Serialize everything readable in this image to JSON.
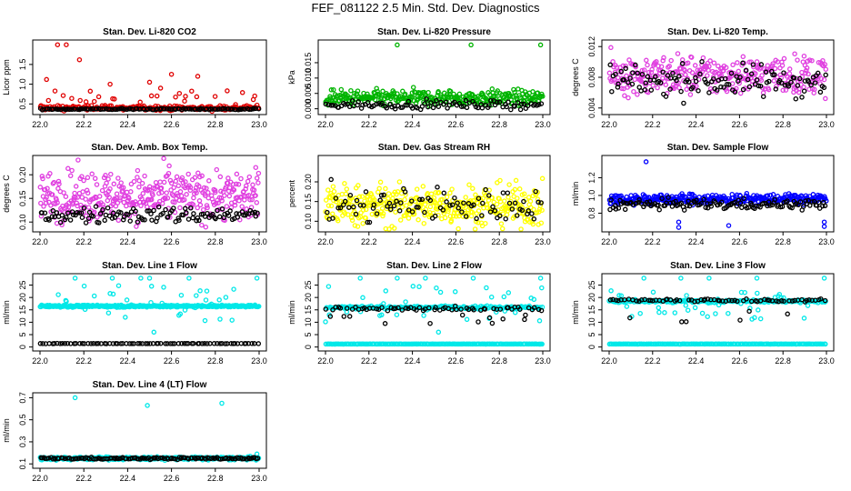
{
  "page": {
    "title": "FEF_081122  2.5 Min. Std. Dev. Diagnostics"
  },
  "colors": {
    "black": "#000000",
    "red": "#e00000",
    "green": "#00b400",
    "magenta": "#e040e0",
    "yellow": "#ffff00",
    "blue": "#0000ff",
    "cyan": "#00e8e8"
  },
  "chart_data": [
    {
      "id": "co2",
      "type": "scatter",
      "title": "Stan. Dev. Li-820 CO2",
      "ylabel": "Licor ppm",
      "xlim": [
        22.0,
        23.0
      ],
      "ylim": [
        0.3,
        2.05
      ],
      "xticks": [
        "22.0",
        "22.2",
        "22.4",
        "22.6",
        "22.8",
        "23.0"
      ],
      "yticks": [
        "0.5",
        "1.0",
        "1.5"
      ],
      "series": [
        {
          "name": "primary",
          "color": "red",
          "n": 240,
          "base": 0.4,
          "spread": 0.05,
          "outlier_rate": 0.1,
          "outlier_range": [
            0.5,
            0.85
          ],
          "extra": [
            [
              22.08,
              2.0
            ],
            [
              22.12,
              2.0
            ],
            [
              22.18,
              1.62
            ],
            [
              22.03,
              1.12
            ],
            [
              22.32,
              1.0
            ],
            [
              22.5,
              1.05
            ],
            [
              22.6,
              1.25
            ],
            [
              22.72,
              1.2
            ],
            [
              22.55,
              0.9
            ],
            [
              22.98,
              0.7
            ]
          ]
        },
        {
          "name": "secondary",
          "color": "black",
          "n": 120,
          "base": 0.37,
          "spread": 0.015,
          "outlier_rate": 0,
          "outlier_range": [
            0,
            0
          ],
          "extra": []
        }
      ]
    },
    {
      "id": "pressure",
      "type": "scatter",
      "title": "Stan. Dev. Li-820 Pressure",
      "ylabel": "kPa",
      "xlim": [
        22.0,
        23.0
      ],
      "ylim": [
        -0.001,
        0.0215
      ],
      "xticks": [
        "22.0",
        "22.2",
        "22.4",
        "22.6",
        "22.8",
        "23.0"
      ],
      "yticks": [
        "0.000",
        "0.005",
        "0.010",
        "0.015"
      ],
      "series": [
        {
          "name": "primary",
          "color": "green",
          "n": 320,
          "base": 0.0035,
          "spread": 0.0022,
          "outlier_rate": 0,
          "outlier_range": [
            0,
            0
          ],
          "extra": [
            [
              22.33,
              0.0208
            ],
            [
              22.67,
              0.0208
            ],
            [
              22.99,
              0.0208
            ]
          ]
        },
        {
          "name": "secondary",
          "color": "black",
          "n": 100,
          "base": 0.0013,
          "spread": 0.0011,
          "outlier_rate": 0,
          "outlier_range": [
            0,
            0
          ],
          "extra": []
        }
      ]
    },
    {
      "id": "temp",
      "type": "scatter",
      "title": "Stan. Dev. Li-820 Temp.",
      "ylabel": "degrees C",
      "xlim": [
        22.0,
        23.0
      ],
      "ylim": [
        0.0035,
        0.0125
      ],
      "xticks": [
        "22.0",
        "22.2",
        "22.4",
        "22.6",
        "22.8",
        "23.0"
      ],
      "yticks": [
        "0.004",
        "0.008",
        "0.012"
      ],
      "series": [
        {
          "name": "primary",
          "color": "magenta",
          "n": 320,
          "base": 0.0083,
          "spread": 0.0022,
          "outlier_rate": 0,
          "outlier_range": [
            0,
            0
          ],
          "extra": []
        },
        {
          "name": "secondary",
          "color": "black",
          "n": 120,
          "base": 0.0075,
          "spread": 0.0018,
          "outlier_rate": 0,
          "outlier_range": [
            0,
            0
          ],
          "extra": []
        }
      ]
    },
    {
      "id": "ambbox",
      "type": "scatter",
      "title": "Stan. Dev. Amb. Box Temp.",
      "ylabel": "degrees C",
      "xlim": [
        22.0,
        23.0
      ],
      "ylim": [
        0.085,
        0.235
      ],
      "xticks": [
        "22.0",
        "22.2",
        "22.4",
        "22.6",
        "22.8",
        "23.0"
      ],
      "yticks": [
        "0.10",
        "0.15",
        "0.20"
      ],
      "series": [
        {
          "name": "primary",
          "color": "magenta",
          "n": 380,
          "base": 0.155,
          "spread": 0.045,
          "outlier_rate": 0,
          "outlier_range": [
            0,
            0
          ],
          "extra": []
        },
        {
          "name": "secondary",
          "color": "black",
          "n": 120,
          "base": 0.115,
          "spread": 0.015,
          "outlier_rate": 0,
          "outlier_range": [
            0,
            0
          ],
          "extra": []
        }
      ]
    },
    {
      "id": "rh",
      "type": "scatter",
      "title": "Stan. Dev. Gas Stream RH",
      "ylabel": "percent",
      "xlim": [
        22.0,
        23.0
      ],
      "ylim": [
        0.08,
        0.26
      ],
      "xticks": [
        "22.0",
        "22.2",
        "22.4",
        "22.6",
        "22.8",
        "23.0"
      ],
      "yticks": [
        "0.10",
        "0.15",
        "0.20"
      ],
      "series": [
        {
          "name": "primary",
          "color": "yellow",
          "n": 380,
          "base": 0.14,
          "spread": 0.045,
          "outlier_rate": 0,
          "outlier_range": [
            0,
            0
          ],
          "extra": []
        },
        {
          "name": "secondary",
          "color": "black",
          "n": 90,
          "base": 0.14,
          "spread": 0.04,
          "outlier_rate": 0,
          "outlier_range": [
            0,
            0
          ],
          "extra": []
        }
      ]
    },
    {
      "id": "sample",
      "type": "scatter",
      "title": "Stan. Dev. Sample Flow",
      "ylabel": "ml/min",
      "xlim": [
        22.0,
        23.0
      ],
      "ylim": [
        0.62,
        1.42
      ],
      "xticks": [
        "22.0",
        "22.2",
        "22.4",
        "22.6",
        "22.8",
        "23.0"
      ],
      "yticks": [
        "0.8",
        "1.0",
        "1.2"
      ],
      "series": [
        {
          "name": "primary",
          "color": "blue",
          "n": 320,
          "base": 0.96,
          "spread": 0.05,
          "outlier_rate": 0,
          "outlier_range": [
            0,
            0
          ],
          "extra": [
            [
              22.17,
              1.38
            ],
            [
              22.32,
              0.7
            ],
            [
              22.32,
              0.64
            ],
            [
              22.55,
              0.66
            ],
            [
              22.99,
              0.7
            ],
            [
              22.99,
              0.65
            ]
          ]
        },
        {
          "name": "secondary",
          "color": "black",
          "n": 130,
          "base": 0.9,
          "spread": 0.05,
          "outlier_rate": 0,
          "outlier_range": [
            0,
            0
          ],
          "extra": []
        }
      ]
    },
    {
      "id": "line1",
      "type": "scatter",
      "title": "Stan. Dev. Line 1 Flow",
      "ylabel": "ml/min",
      "xlim": [
        22.0,
        23.0
      ],
      "ylim": [
        -0.5,
        28.5
      ],
      "xticks": [
        "22.0",
        "22.2",
        "22.4",
        "22.6",
        "22.8",
        "23.0"
      ],
      "yticks": [
        "0",
        "5",
        "10",
        "15",
        "20",
        "25"
      ],
      "series": [
        {
          "name": "primary",
          "color": "cyan",
          "n": 360,
          "base": 16.5,
          "spread": 0.35,
          "outlier_rate": 0.08,
          "outlier_range": [
            10,
            25
          ],
          "extra": [
            [
              22.16,
              27.8
            ],
            [
              22.33,
              27.8
            ],
            [
              22.46,
              27.8
            ],
            [
              22.5,
              27.8
            ],
            [
              22.68,
              27.8
            ],
            [
              22.99,
              27.8
            ],
            [
              22.52,
              6.0
            ]
          ]
        },
        {
          "name": "secondary",
          "color": "black",
          "n": 80,
          "base": 1.4,
          "spread": 0.05,
          "outlier_rate": 0,
          "outlier_range": [
            0,
            0
          ],
          "extra": []
        }
      ]
    },
    {
      "id": "line2",
      "type": "scatter",
      "title": "Stan. Dev. Line 2 Flow",
      "ylabel": "ml/min",
      "xlim": [
        22.0,
        23.0
      ],
      "ylim": [
        -0.5,
        28.5
      ],
      "xticks": [
        "22.0",
        "22.2",
        "22.4",
        "22.6",
        "22.8",
        "23.0"
      ],
      "yticks": [
        "0",
        "5",
        "10",
        "15",
        "20",
        "25"
      ],
      "series": [
        {
          "name": "primary",
          "color": "cyan",
          "n": 240,
          "base": 16.0,
          "spread": 0.5,
          "outlier_rate": 0.15,
          "outlier_range": [
            10,
            25
          ],
          "extra": [
            [
              22.16,
              27.8
            ],
            [
              22.33,
              27.8
            ],
            [
              22.46,
              27.8
            ],
            [
              22.68,
              27.8
            ],
            [
              22.99,
              27.8
            ],
            [
              22.52,
              6.0
            ]
          ]
        },
        {
          "name": "zero",
          "color": "cyan",
          "n": 180,
          "base": 1.2,
          "spread": 0.03,
          "outlier_rate": 0,
          "outlier_range": [
            0,
            0
          ],
          "extra": []
        },
        {
          "name": "secondary",
          "color": "black",
          "n": 75,
          "base": 15.5,
          "spread": 0.8,
          "outlier_rate": 0.1,
          "outlier_range": [
            9,
            13
          ],
          "extra": []
        }
      ]
    },
    {
      "id": "line3",
      "type": "scatter",
      "title": "Stan. Dev. Line 3 Flow",
      "ylabel": "ml/min",
      "xlim": [
        22.0,
        23.0
      ],
      "ylim": [
        -0.5,
        28.5
      ],
      "xticks": [
        "22.0",
        "22.2",
        "22.4",
        "22.6",
        "22.8",
        "23.0"
      ],
      "yticks": [
        "0",
        "5",
        "10",
        "15",
        "20",
        "25"
      ],
      "series": [
        {
          "name": "primary",
          "color": "cyan",
          "n": 240,
          "base": 18.5,
          "spread": 0.5,
          "outlier_rate": 0.12,
          "outlier_range": [
            11,
            23
          ],
          "extra": [
            [
              22.16,
              27.8
            ],
            [
              22.33,
              27.8
            ],
            [
              22.46,
              27.8
            ],
            [
              22.68,
              27.8
            ],
            [
              22.99,
              27.8
            ]
          ]
        },
        {
          "name": "zero",
          "color": "cyan",
          "n": 180,
          "base": 1.2,
          "spread": 0.03,
          "outlier_rate": 0,
          "outlier_range": [
            0,
            0
          ],
          "extra": []
        },
        {
          "name": "secondary",
          "color": "black",
          "n": 75,
          "base": 18.8,
          "spread": 0.6,
          "outlier_rate": 0.08,
          "outlier_range": [
            10,
            15
          ],
          "extra": []
        }
      ]
    },
    {
      "id": "line4",
      "type": "scatter",
      "title": "Stan. Dev. Line 4 (LT) Flow",
      "ylabel": "ml/min",
      "xlim": [
        22.0,
        23.0
      ],
      "ylim": [
        0.085,
        0.72
      ],
      "xticks": [
        "22.0",
        "22.2",
        "22.4",
        "22.6",
        "22.8",
        "23.0"
      ],
      "yticks": [
        "0.1",
        "0.3",
        "0.5",
        "0.7"
      ],
      "series": [
        {
          "name": "primary",
          "color": "cyan",
          "n": 360,
          "base": 0.15,
          "spread": 0.012,
          "outlier_rate": 0,
          "outlier_range": [
            0,
            0
          ],
          "extra": [
            [
              22.16,
              0.7
            ],
            [
              22.49,
              0.63
            ],
            [
              22.83,
              0.65
            ],
            [
              22.99,
              0.19
            ]
          ]
        },
        {
          "name": "secondary",
          "color": "black",
          "n": 130,
          "base": 0.15,
          "spread": 0.008,
          "outlier_rate": 0,
          "outlier_range": [
            0,
            0
          ],
          "extra": []
        }
      ]
    }
  ]
}
